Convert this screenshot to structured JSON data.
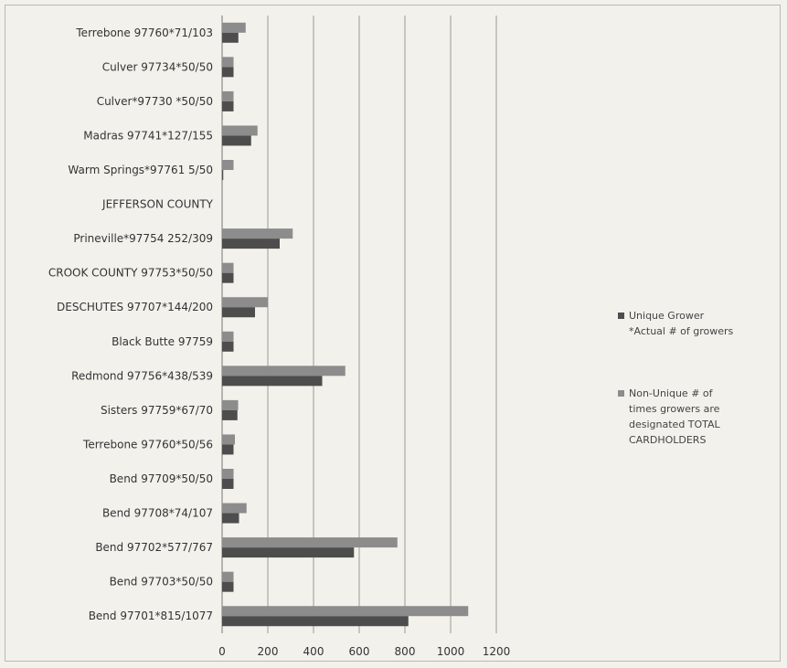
{
  "chart_data": {
    "type": "bar",
    "orientation": "horizontal",
    "categories": [
      "Bend 97701*815/1077",
      "Bend 97703*50/50",
      "Bend 97702*577/767",
      "Bend 97708*74/107",
      "Bend 97709*50/50",
      "Terrebone 97760*50/56",
      "Sisters 97759*67/70",
      "Redmond 97756*438/539",
      "Black Butte 97759",
      "DESCHUTES 97707*144/200",
      "CROOK COUNTY 97753*50/50",
      "Prineville*97754 252/309",
      "JEFFERSON COUNTY",
      "Warm Springs*97761 5/50",
      "Madras 97741*127/155",
      "Culver*97730 *50/50",
      "Culver 97734*50/50",
      "Terrebone 97760*71/103"
    ],
    "series": [
      {
        "name": "Unique Grower *Actual # of growers",
        "color": "#4d4d4d",
        "values": [
          815,
          50,
          577,
          74,
          50,
          50,
          67,
          438,
          50,
          144,
          50,
          252,
          0,
          5,
          127,
          50,
          50,
          71
        ]
      },
      {
        "name": "Non-Unique # of times growers are designated TOTAL CARDHOLDERS",
        "color": "#8c8c8c",
        "values": [
          1077,
          50,
          767,
          107,
          50,
          56,
          70,
          539,
          50,
          200,
          50,
          309,
          0,
          50,
          155,
          50,
          50,
          103
        ]
      }
    ],
    "xlim": [
      0,
      1200
    ],
    "xticks": [
      "0",
      "200",
      "400",
      "600",
      "800",
      "1000",
      "1200"
    ],
    "grid": "vertical",
    "legend_position": "right"
  }
}
